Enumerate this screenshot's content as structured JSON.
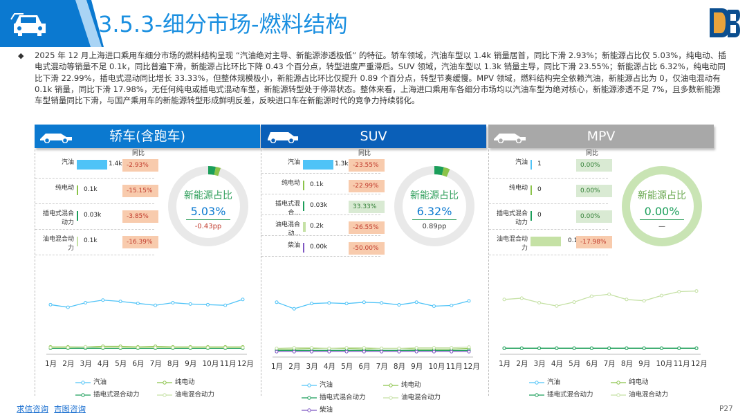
{
  "header": {
    "title": "3.5.3-细分市场-燃料结构"
  },
  "paragraph": "2025 年 12 月上海进口乘用车细分市场的燃料结构呈现 “汽油绝对主导、新能源渗透极低” 的特征。轿车领域，汽油车型以 1.4k 销量居首，同比下滑 2.93%；新能源占比仅 5.03%，纯电动、插电式混动等销量不足 0.1k，同比普遍下滑，新能源占比环比下降 0.43 个百分点，转型进度严重滞后。SUV 领域，汽油车型以 1.3k 销量主导，同比下滑 23.55%；新能源占比 6.32%，纯电动同比下滑 22.99%，插电式混动同比增长 33.33%，但整体规模极小，新能源占比环比仅提升 0.89 个百分点，转型节奏缓慢。MPV 领域，燃料结构完全依赖汽油，新能源占比为 0，仅油电混动有 0.1k 销量，同比下滑 17.98%，无任何纯电或插电式混动车型，新能源转型处于停滞状态。整体来看，上海进口乘用车各细分市场均以汽油车型为绝对核心，新能源渗透不足 7%，且多数新能源车型销量同比下滑，与国产乘用车的新能源转型形成鲜明反差，反映进口车在新能源时代的竞争力持续弱化。",
  "bullet": "◆",
  "colors": {
    "brand": "#1a8fe0",
    "sedan": "#0b79d0",
    "suv": "#0a5fb8",
    "mpv": "#a8a8a8",
    "gasoline": "#4fc3f7",
    "ev": "#8bc34a",
    "phev": "#1b9e5a",
    "hev": "#c5e1a5",
    "diesel": "#7e57c2",
    "neg": "#f8cbad",
    "pos": "#d9ead3",
    "negText": "#c0392b",
    "posText": "#2e7d32"
  },
  "yoy_header": "同比",
  "donut_title": "新能源占比",
  "months": [
    "1月",
    "2月",
    "3月",
    "4月",
    "5月",
    "6月",
    "7月",
    "8月",
    "9月",
    "10月",
    "11月",
    "12月"
  ],
  "panels": [
    {
      "name": "轿车(含跑车)",
      "rows": [
        {
          "label": "汽油",
          "value": "1.4k",
          "bar": 1.0,
          "color": "#4fc3f7",
          "yoy": "-2.93%",
          "sign": "neg"
        },
        {
          "label": "纯电动",
          "value": "0.1k",
          "bar": 0.05,
          "color": "#8bc34a",
          "yoy": "-15.15%",
          "sign": "neg"
        },
        {
          "label": "插电式混合动力",
          "value": "0.03k",
          "bar": 0.02,
          "color": "#1b9e5a",
          "yoy": "-3.85%",
          "sign": "neg"
        },
        {
          "label": "油电混合动力",
          "value": "0.1k",
          "bar": 0.05,
          "color": "#c5e1a5",
          "yoy": "-16.39%",
          "sign": "neg"
        }
      ],
      "share": "5.03%",
      "share_frac": 0.0503,
      "change": "-0.43pp",
      "change_sign": "neg",
      "legend": [
        "汽油",
        "纯电动",
        "插电式混合动力",
        "油电混合动力"
      ],
      "chart_series": [
        {
          "name": "汽油",
          "color": "#4fc3f7",
          "values": [
            0.72,
            0.68,
            0.75,
            0.79,
            0.77,
            0.74,
            0.71,
            0.75,
            0.73,
            0.72,
            0.71,
            0.8
          ]
        },
        {
          "name": "纯电动",
          "color": "#8bc34a",
          "values": [
            0.07,
            0.07,
            0.07,
            0.08,
            0.08,
            0.07,
            0.08,
            0.07,
            0.07,
            0.07,
            0.07,
            0.07
          ]
        },
        {
          "name": "插电式混合动力",
          "color": "#1b9e5a",
          "values": [
            0.05,
            0.05,
            0.05,
            0.05,
            0.05,
            0.05,
            0.05,
            0.05,
            0.05,
            0.05,
            0.05,
            0.05
          ]
        },
        {
          "name": "油电混合动力",
          "color": "#c5e1a5",
          "values": [
            0.06,
            0.06,
            0.07,
            0.06,
            0.06,
            0.06,
            0.06,
            0.06,
            0.06,
            0.06,
            0.06,
            0.06
          ]
        }
      ]
    },
    {
      "name": "SUV",
      "rows": [
        {
          "label": "汽油",
          "value": "1.3k",
          "bar": 1.0,
          "color": "#4fc3f7",
          "yoy": "-23.55%",
          "sign": "neg"
        },
        {
          "label": "纯电动",
          "value": "0.1k",
          "bar": 0.05,
          "color": "#8bc34a",
          "yoy": "-22.99%",
          "sign": "neg"
        },
        {
          "label": "插电式混合...",
          "value": "0.03k",
          "bar": 0.02,
          "color": "#1b9e5a",
          "yoy": "33.33%",
          "sign": "pos"
        },
        {
          "label": "油电混合动...",
          "value": "0.2k",
          "bar": 0.08,
          "color": "#c5e1a5",
          "yoy": "-26.55%",
          "sign": "neg"
        },
        {
          "label": "柴油",
          "value": "0.00k",
          "bar": 0.01,
          "color": "#7e57c2",
          "yoy": "-50.00%",
          "sign": "neg"
        }
      ],
      "share": "6.32%",
      "share_frac": 0.0632,
      "change": "0.89pp",
      "change_sign": "pos",
      "legend": [
        "汽油",
        "纯电动",
        "插电式混合动力",
        "油电混合动力",
        "柴油"
      ],
      "chart_series": [
        {
          "name": "汽油",
          "color": "#4fc3f7",
          "values": [
            0.8,
            0.7,
            0.78,
            0.79,
            0.78,
            0.8,
            0.79,
            0.76,
            0.8,
            0.74,
            0.75,
            0.82
          ]
        },
        {
          "name": "纯电动",
          "color": "#8bc34a",
          "values": [
            0.08,
            0.08,
            0.09,
            0.09,
            0.09,
            0.08,
            0.09,
            0.09,
            0.08,
            0.08,
            0.08,
            0.09
          ]
        },
        {
          "name": "插电式混合动力",
          "color": "#1b9e5a",
          "values": [
            0.06,
            0.06,
            0.06,
            0.06,
            0.06,
            0.06,
            0.06,
            0.06,
            0.06,
            0.06,
            0.06,
            0.06
          ]
        },
        {
          "name": "油电混合动力",
          "color": "#c5e1a5",
          "values": [
            0.09,
            0.1,
            0.1,
            0.09,
            0.1,
            0.1,
            0.09,
            0.09,
            0.1,
            0.1,
            0.1,
            0.11
          ]
        },
        {
          "name": "柴油",
          "color": "#7e57c2",
          "values": [
            0.04,
            0.04,
            0.04,
            0.04,
            0.04,
            0.04,
            0.04,
            0.04,
            0.04,
            0.04,
            0.04,
            0.04
          ]
        }
      ]
    },
    {
      "name": "MPV",
      "rows": [
        {
          "label": "汽油",
          "value": "1",
          "bar": 0.0,
          "color": "#4fc3f7",
          "yoy": "0.00%",
          "sign": "pos"
        },
        {
          "label": "纯电动",
          "value": "0",
          "bar": 0.0,
          "color": "#8bc34a",
          "yoy": "0.00%",
          "sign": "pos"
        },
        {
          "label": "插电式混合动力",
          "value": "0",
          "bar": 0.0,
          "color": "#1b9e5a",
          "yoy": "0.00%",
          "sign": "pos"
        },
        {
          "label": "油电混合动力",
          "value": "0.1k",
          "bar": 1.0,
          "color": "#c5e1a5",
          "yoy": "-17.98%",
          "sign": "neg"
        }
      ],
      "share": "0.00%",
      "share_frac": 0.0,
      "change": "—",
      "change_sign": "none",
      "legend": [
        "汽油",
        "纯电动",
        "插电式混合动力",
        "油电混合动力"
      ],
      "chart_series": [
        {
          "name": "汽油",
          "color": "#4fc3f7",
          "values": [
            0.05,
            0.05,
            0.05,
            0.05,
            0.05,
            0.05,
            0.05,
            0.05,
            0.05,
            0.05,
            0.05,
            0.05
          ]
        },
        {
          "name": "纯电动",
          "color": "#8bc34a",
          "values": [
            0.05,
            0.05,
            0.05,
            0.05,
            0.05,
            0.05,
            0.05,
            0.05,
            0.05,
            0.05,
            0.05,
            0.05
          ]
        },
        {
          "name": "插电式混合动力",
          "color": "#1b9e5a",
          "values": [
            0.05,
            0.05,
            0.05,
            0.05,
            0.05,
            0.05,
            0.05,
            0.05,
            0.05,
            0.05,
            0.05,
            0.05
          ]
        },
        {
          "name": "油电混合动力",
          "color": "#c5e1a5",
          "values": [
            0.8,
            0.82,
            0.75,
            0.7,
            0.76,
            0.85,
            0.88,
            0.8,
            0.78,
            0.86,
            0.92,
            0.93
          ]
        }
      ]
    }
  ],
  "footer": {
    "link1": "求信咨询",
    "link2": "吉图咨询"
  },
  "page": "P27"
}
